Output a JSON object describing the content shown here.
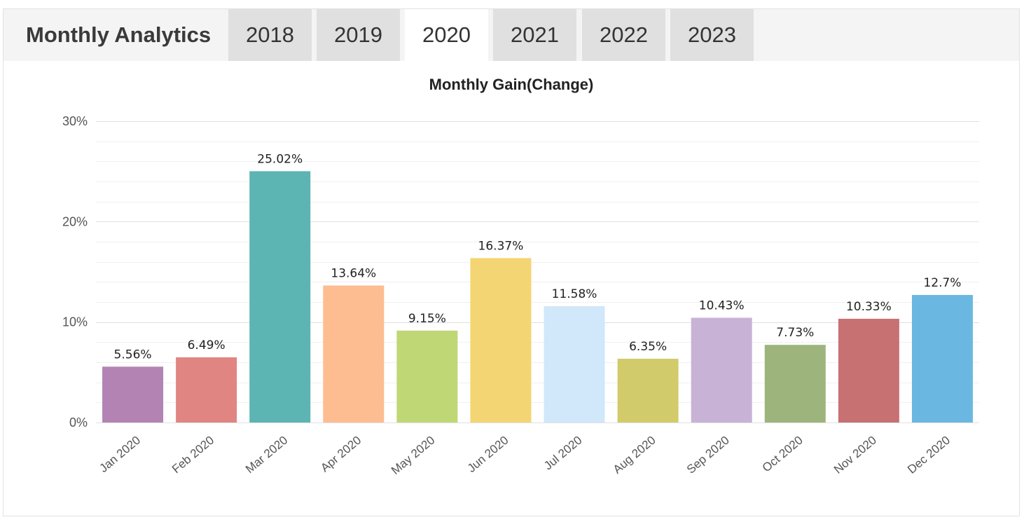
{
  "header": {
    "title": "Monthly Analytics",
    "tabs": [
      {
        "label": "2018",
        "active": false
      },
      {
        "label": "2019",
        "active": false
      },
      {
        "label": "2020",
        "active": true
      },
      {
        "label": "2021",
        "active": false
      },
      {
        "label": "2022",
        "active": false
      },
      {
        "label": "2023",
        "active": false
      }
    ]
  },
  "chart_data": {
    "type": "bar",
    "title": "Monthly Gain(Change)",
    "xlabel": "",
    "ylabel": "",
    "ylim": [
      0,
      30
    ],
    "yticks": [
      0,
      10,
      20,
      30
    ],
    "ytick_labels": [
      "0%",
      "10%",
      "20%",
      "30%"
    ],
    "grid": true,
    "legend": "none",
    "categories": [
      "Jan 2020",
      "Feb 2020",
      "Mar 2020",
      "Apr 2020",
      "May 2020",
      "Jun 2020",
      "Jul 2020",
      "Aug 2020",
      "Sep 2020",
      "Oct 2020",
      "Nov 2020",
      "Dec 2020"
    ],
    "values": [
      5.56,
      6.49,
      25.02,
      13.64,
      9.15,
      16.37,
      11.58,
      6.35,
      10.43,
      7.73,
      10.33,
      12.7
    ],
    "labels": [
      "5.56%",
      "6.49%",
      "25.02%",
      "13.64%",
      "9.15%",
      "16.37%",
      "11.58%",
      "6.35%",
      "10.43%",
      "7.73%",
      "10.33%",
      "12.7%"
    ],
    "colors": [
      "#b283b3",
      "#e08582",
      "#5cb4b3",
      "#fdbd91",
      "#bfd775",
      "#f4d573",
      "#d1e7fa",
      "#d2cb6b",
      "#c8b2d6",
      "#9db47c",
      "#c77173",
      "#6ab8e2"
    ]
  }
}
